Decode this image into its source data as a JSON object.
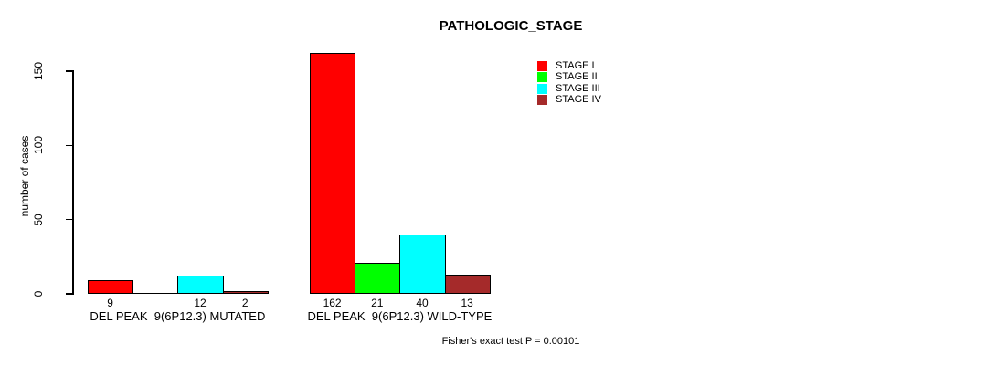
{
  "title": "PATHOLOGIC_STAGE",
  "chart_data": {
    "type": "bar",
    "title": "PATHOLOGIC_STAGE",
    "xlabel": "",
    "ylabel": "number of cases",
    "ylim": [
      0,
      162
    ],
    "yticks": [
      0,
      50,
      100,
      150
    ],
    "grid": false,
    "legend_position": "top-right",
    "categories": [
      "DEL PEAK  9(6P12.3) MUTATED",
      "DEL PEAK  9(6P12.3) WILD-TYPE"
    ],
    "series": [
      {
        "name": "STAGE I",
        "color": "#ff0000",
        "values": [
          9,
          162
        ]
      },
      {
        "name": "STAGE II",
        "color": "#00ff00",
        "values": [
          0,
          21
        ]
      },
      {
        "name": "STAGE III",
        "color": "#00ffff",
        "values": [
          12,
          40
        ]
      },
      {
        "name": "STAGE IV",
        "color": "#a52a2a",
        "values": [
          2,
          13
        ]
      }
    ],
    "bar_value_labels": [
      [
        "9",
        "",
        "12",
        "2"
      ],
      [
        "162",
        "21",
        "40",
        "13"
      ]
    ],
    "annotation": "Fisher's exact test P = 0.00101"
  }
}
